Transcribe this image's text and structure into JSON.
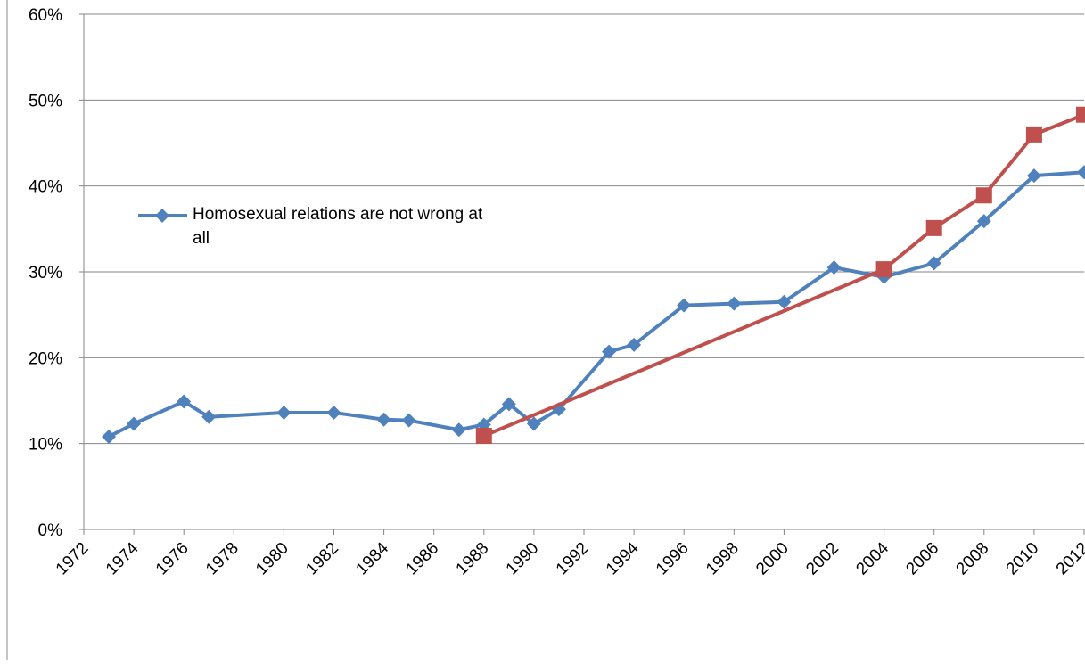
{
  "chart_data": {
    "type": "line",
    "series": [
      {
        "name": "Homosexual relations are not wrong at all",
        "color": "#4f81bd",
        "marker": "diamond",
        "x": [
          1973,
          1974,
          1976,
          1977,
          1980,
          1982,
          1984,
          1985,
          1987,
          1988,
          1989,
          1990,
          1991,
          1993,
          1994,
          1996,
          1998,
          2000,
          2002,
          2004,
          2006,
          2008,
          2010,
          2012
        ],
        "values": [
          10.8,
          12.3,
          14.9,
          13.1,
          13.6,
          13.6,
          12.8,
          12.7,
          11.6,
          12.2,
          14.6,
          12.3,
          14.0,
          20.7,
          21.5,
          26.1,
          26.3,
          26.5,
          30.5,
          29.4,
          31.0,
          35.9,
          41.2,
          41.6
        ]
      },
      {
        "color": "#c0504d",
        "marker": "square",
        "x": [
          1988,
          2004,
          2006,
          2008,
          2010,
          2012
        ],
        "values": [
          10.9,
          30.3,
          35.1,
          38.9,
          46.0,
          48.3
        ]
      }
    ],
    "xlim": [
      1972,
      2012
    ],
    "xticks": [
      1972,
      1974,
      1976,
      1978,
      1980,
      1982,
      1984,
      1986,
      1988,
      1990,
      1992,
      1994,
      1996,
      1998,
      2000,
      2002,
      2004,
      2006,
      2008,
      2010,
      2012
    ],
    "ylim": [
      0,
      60
    ],
    "yticks": [
      {
        "value": 0,
        "label": "0%"
      },
      {
        "value": 10,
        "label": "10%"
      },
      {
        "value": 20,
        "label": "20%"
      },
      {
        "value": 30,
        "label": "30%"
      },
      {
        "value": 40,
        "label": "40%"
      },
      {
        "value": 50,
        "label": "50%"
      },
      {
        "value": 60,
        "label": "60%"
      }
    ],
    "grid": true
  }
}
